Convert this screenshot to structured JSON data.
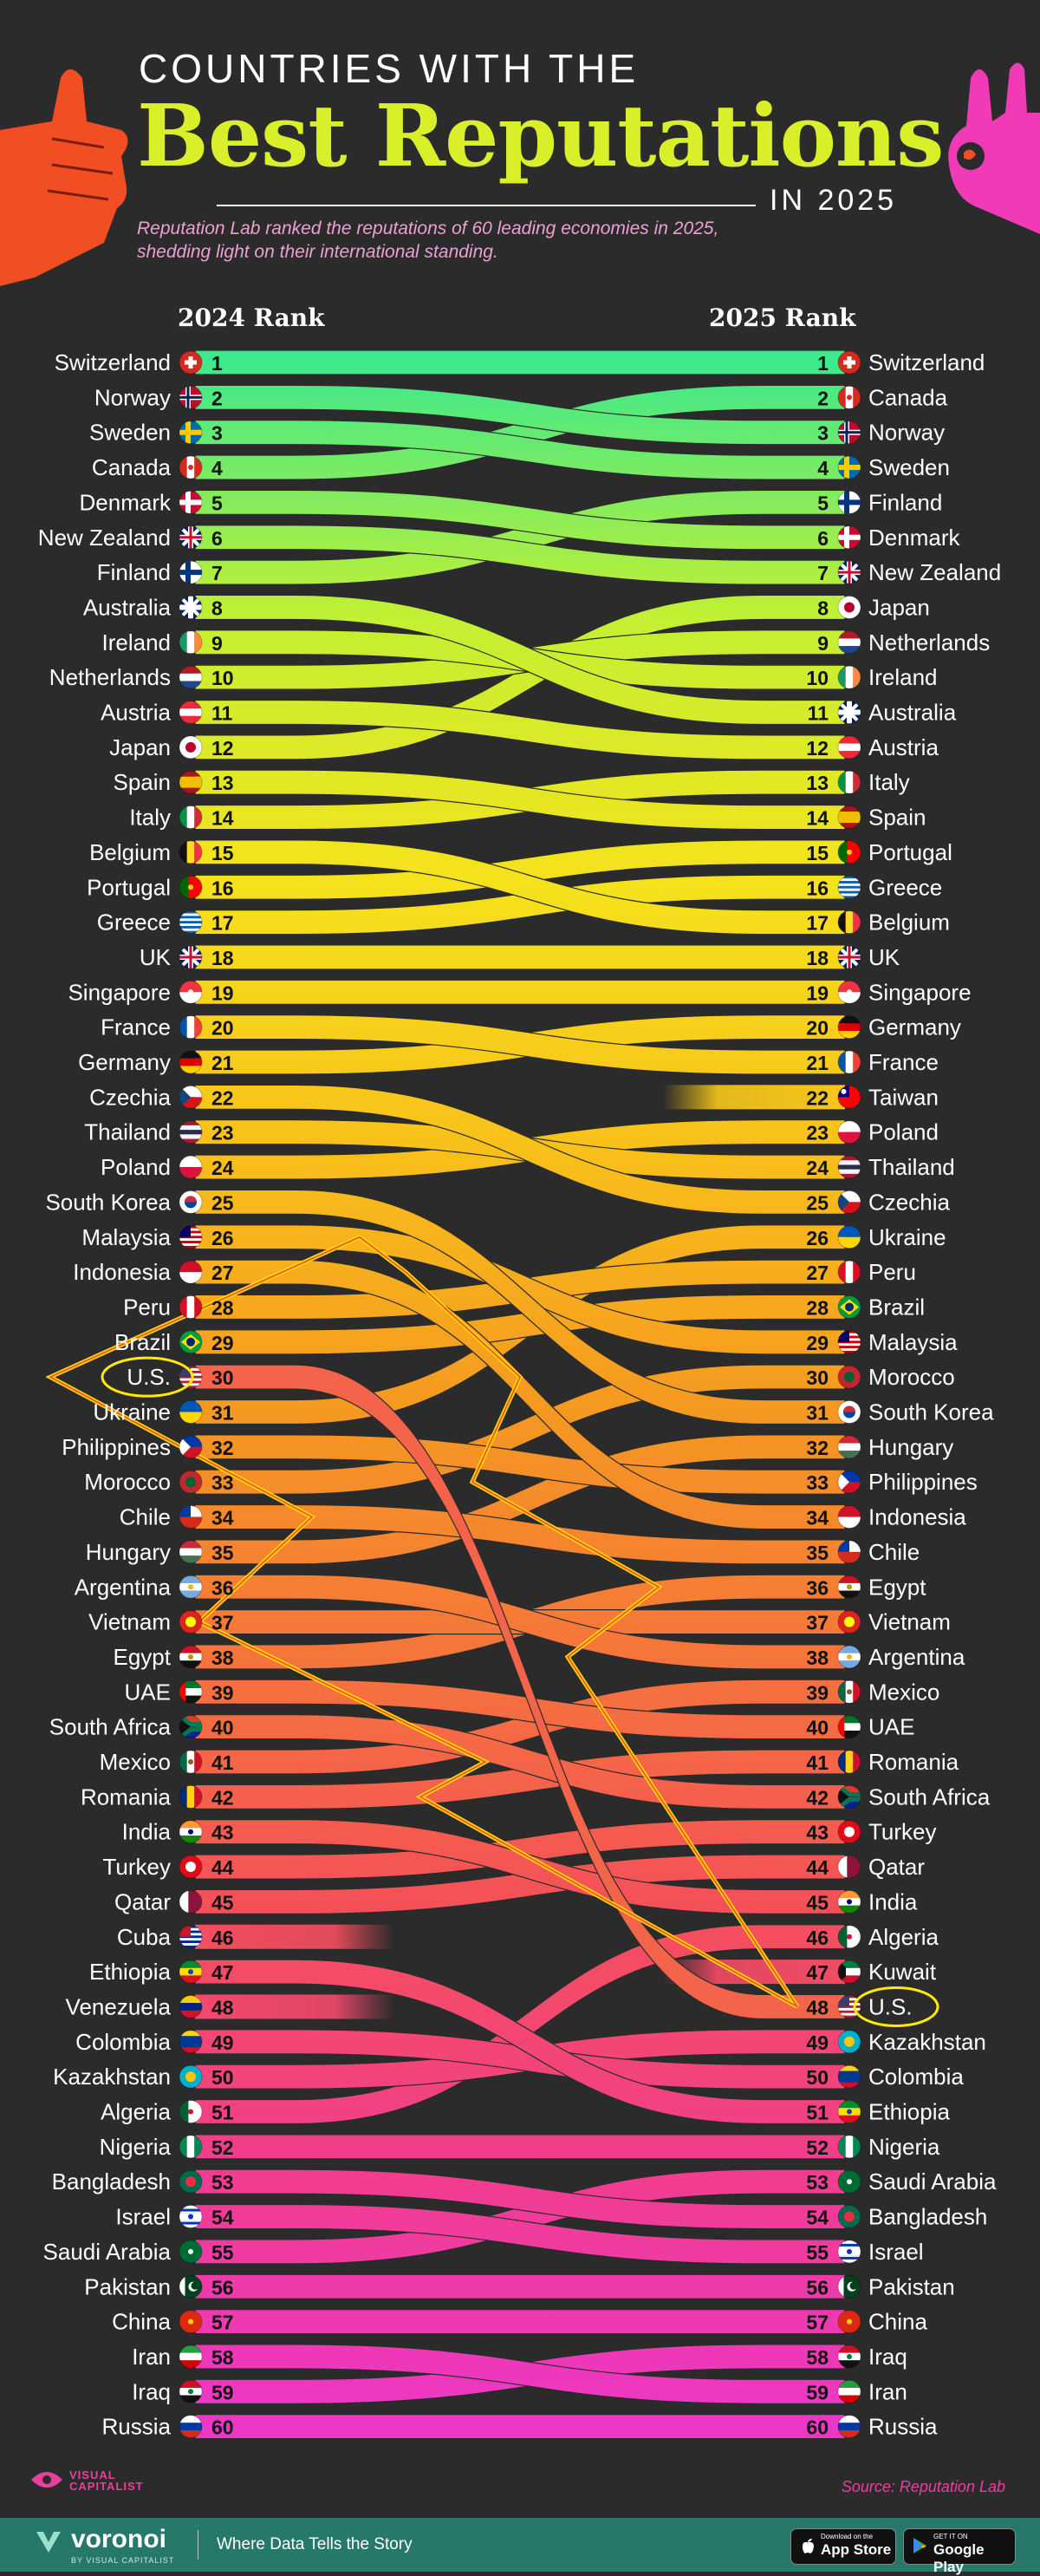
{
  "header": {
    "title_line1": "COUNTRIES WITH THE",
    "title_line2": "Best Reputations",
    "title_line3": "IN 2025",
    "subtitle": "Reputation Lab ranked the reputations of 60 leading economies in 2025, shedding light on their international standing."
  },
  "chart_data": {
    "type": "bump",
    "left_header": "2024 Rank",
    "right_header": "2025 Rank",
    "highlighted": "U.S.",
    "rows": [
      {
        "country": "Switzerland",
        "r2024": 1,
        "r2025": 1
      },
      {
        "country": "Norway",
        "r2024": 2,
        "r2025": 3
      },
      {
        "country": "Sweden",
        "r2024": 3,
        "r2025": 4
      },
      {
        "country": "Canada",
        "r2024": 4,
        "r2025": 2
      },
      {
        "country": "Denmark",
        "r2024": 5,
        "r2025": 6
      },
      {
        "country": "New Zealand",
        "r2024": 6,
        "r2025": 7
      },
      {
        "country": "Finland",
        "r2024": 7,
        "r2025": 5
      },
      {
        "country": "Australia",
        "r2024": 8,
        "r2025": 11
      },
      {
        "country": "Ireland",
        "r2024": 9,
        "r2025": 10
      },
      {
        "country": "Netherlands",
        "r2024": 10,
        "r2025": 9
      },
      {
        "country": "Austria",
        "r2024": 11,
        "r2025": 12
      },
      {
        "country": "Japan",
        "r2024": 12,
        "r2025": 8
      },
      {
        "country": "Spain",
        "r2024": 13,
        "r2025": 14
      },
      {
        "country": "Italy",
        "r2024": 14,
        "r2025": 13
      },
      {
        "country": "Belgium",
        "r2024": 15,
        "r2025": 17
      },
      {
        "country": "Portugal",
        "r2024": 16,
        "r2025": 15
      },
      {
        "country": "Greece",
        "r2024": 17,
        "r2025": 16
      },
      {
        "country": "UK",
        "r2024": 18,
        "r2025": 18
      },
      {
        "country": "Singapore",
        "r2024": 19,
        "r2025": 19
      },
      {
        "country": "France",
        "r2024": 20,
        "r2025": 21
      },
      {
        "country": "Germany",
        "r2024": 21,
        "r2025": 20
      },
      {
        "country": "Czechia",
        "r2024": 22,
        "r2025": 25
      },
      {
        "country": "Thailand",
        "r2024": 23,
        "r2025": 24
      },
      {
        "country": "Poland",
        "r2024": 24,
        "r2025": 23
      },
      {
        "country": "South Korea",
        "r2024": 25,
        "r2025": 31
      },
      {
        "country": "Malaysia",
        "r2024": 26,
        "r2025": 29
      },
      {
        "country": "Indonesia",
        "r2024": 27,
        "r2025": 34
      },
      {
        "country": "Peru",
        "r2024": 28,
        "r2025": 27
      },
      {
        "country": "Brazil",
        "r2024": 29,
        "r2025": 28
      },
      {
        "country": "U.S.",
        "r2024": 30,
        "r2025": 48
      },
      {
        "country": "Ukraine",
        "r2024": 31,
        "r2025": 26
      },
      {
        "country": "Philippines",
        "r2024": 32,
        "r2025": 33
      },
      {
        "country": "Morocco",
        "r2024": 33,
        "r2025": 30
      },
      {
        "country": "Chile",
        "r2024": 34,
        "r2025": 35
      },
      {
        "country": "Hungary",
        "r2024": 35,
        "r2025": 32
      },
      {
        "country": "Argentina",
        "r2024": 36,
        "r2025": 38
      },
      {
        "country": "Vietnam",
        "r2024": 37,
        "r2025": 37
      },
      {
        "country": "Egypt",
        "r2024": 38,
        "r2025": 36
      },
      {
        "country": "UAE",
        "r2024": 39,
        "r2025": 40
      },
      {
        "country": "South Africa",
        "r2024": 40,
        "r2025": 42
      },
      {
        "country": "Mexico",
        "r2024": 41,
        "r2025": 39
      },
      {
        "country": "Romania",
        "r2024": 42,
        "r2025": 41
      },
      {
        "country": "India",
        "r2024": 43,
        "r2025": 45
      },
      {
        "country": "Turkey",
        "r2024": 44,
        "r2025": 43
      },
      {
        "country": "Qatar",
        "r2024": 45,
        "r2025": 44
      },
      {
        "country": "Cuba",
        "r2024": 46,
        "r2025": null
      },
      {
        "country": "Ethiopia",
        "r2024": 47,
        "r2025": 51
      },
      {
        "country": "Venezuela",
        "r2024": 48,
        "r2025": null
      },
      {
        "country": "Colombia",
        "r2024": 49,
        "r2025": 50
      },
      {
        "country": "Kazakhstan",
        "r2024": 50,
        "r2025": 49
      },
      {
        "country": "Algeria",
        "r2024": 51,
        "r2025": 46
      },
      {
        "country": "Nigeria",
        "r2024": 52,
        "r2025": 52
      },
      {
        "country": "Bangladesh",
        "r2024": 53,
        "r2025": 54
      },
      {
        "country": "Israel",
        "r2024": 54,
        "r2025": 55
      },
      {
        "country": "Saudi Arabia",
        "r2024": 55,
        "r2025": 53
      },
      {
        "country": "Pakistan",
        "r2024": 56,
        "r2025": 56
      },
      {
        "country": "China",
        "r2024": 57,
        "r2025": 57
      },
      {
        "country": "Iran",
        "r2024": 58,
        "r2025": 59
      },
      {
        "country": "Iraq",
        "r2024": 59,
        "r2025": 58
      },
      {
        "country": "Russia",
        "r2024": 60,
        "r2025": 60
      },
      {
        "country": "Taiwan",
        "r2024": null,
        "r2025": 22
      },
      {
        "country": "Kuwait",
        "r2024": null,
        "r2025": 47
      }
    ]
  },
  "flags": {
    "Switzerland": {
      "type": "swiss",
      "c": [
        "#d52b1e",
        "#ffffff"
      ]
    },
    "Norway": {
      "type": "nordic",
      "c": [
        "#ba0c2f",
        "#ffffff",
        "#00205b"
      ]
    },
    "Sweden": {
      "type": "nordic",
      "c": [
        "#006aa7",
        "#fecc00"
      ]
    },
    "Canada": {
      "type": "v3",
      "c": [
        "#d52b1e",
        "#ffffff",
        "#d52b1e"
      ],
      "mark": "#d52b1e"
    },
    "Denmark": {
      "type": "nordic",
      "c": [
        "#c60c30",
        "#ffffff"
      ]
    },
    "New Zealand": {
      "type": "ensign",
      "c": [
        "#012169",
        "#c8102e"
      ]
    },
    "Finland": {
      "type": "nordic",
      "c": [
        "#ffffff",
        "#003580"
      ]
    },
    "Australia": {
      "type": "ensign",
      "c": [
        "#012169",
        "#ffffff"
      ]
    },
    "Ireland": {
      "type": "v3",
      "c": [
        "#169b62",
        "#ffffff",
        "#ff883e"
      ]
    },
    "Netherlands": {
      "type": "h3",
      "c": [
        "#ae1c28",
        "#ffffff",
        "#21468b"
      ]
    },
    "Austria": {
      "type": "h3",
      "c": [
        "#ed2939",
        "#ffffff",
        "#ed2939"
      ]
    },
    "Japan": {
      "type": "disc",
      "c": [
        "#ffffff",
        "#bc002d"
      ]
    },
    "Spain": {
      "type": "h3w",
      "c": [
        "#aa151b",
        "#f1bf00",
        "#aa151b"
      ]
    },
    "Italy": {
      "type": "v3",
      "c": [
        "#009246",
        "#ffffff",
        "#ce2b37"
      ]
    },
    "Belgium": {
      "type": "v3",
      "c": [
        "#111111",
        "#fdda24",
        "#ef3340"
      ]
    },
    "Portugal": {
      "type": "v2",
      "c": [
        "#006600",
        "#ff0000"
      ],
      "mark": "#ffcc00"
    },
    "Greece": {
      "type": "stripes",
      "c": [
        "#0d5eaf",
        "#ffffff"
      ]
    },
    "UK": {
      "type": "union",
      "c": [
        "#012169",
        "#ffffff",
        "#c8102e"
      ]
    },
    "Singapore": {
      "type": "h2",
      "c": [
        "#ef3340",
        "#ffffff"
      ],
      "mark": "#ffffff"
    },
    "France": {
      "type": "v3",
      "c": [
        "#0055a4",
        "#ffffff",
        "#ef4135"
      ]
    },
    "Germany": {
      "type": "h3",
      "c": [
        "#111111",
        "#dd0000",
        "#ffce00"
      ]
    },
    "Czechia": {
      "type": "tri",
      "c": [
        "#ffffff",
        "#d7141a",
        "#11457e"
      ]
    },
    "Thailand": {
      "type": "h5",
      "c": [
        "#a51931",
        "#f4f5f8",
        "#2d2a4a",
        "#f4f5f8",
        "#a51931"
      ]
    },
    "Poland": {
      "type": "h2",
      "c": [
        "#ffffff",
        "#dc143c"
      ]
    },
    "South Korea": {
      "type": "disc2",
      "c": [
        "#ffffff",
        "#cd2e3a",
        "#0047a0"
      ]
    },
    "Malaysia": {
      "type": "stripes",
      "c": [
        "#cc0001",
        "#ffffff"
      ],
      "canton": "#010066"
    },
    "Indonesia": {
      "type": "h2",
      "c": [
        "#ce1126",
        "#ffffff"
      ]
    },
    "Peru": {
      "type": "v3",
      "c": [
        "#d91023",
        "#ffffff",
        "#d91023"
      ]
    },
    "Brazil": {
      "type": "diamond",
      "c": [
        "#009c3b",
        "#ffdf00",
        "#002776"
      ]
    },
    "U.S.": {
      "type": "stripes",
      "c": [
        "#b22234",
        "#ffffff"
      ],
      "canton": "#3c3b6e"
    },
    "Ukraine": {
      "type": "h2",
      "c": [
        "#0057b7",
        "#ffd700"
      ]
    },
    "Philippines": {
      "type": "tri",
      "c": [
        "#0038a8",
        "#ce1126",
        "#ffffff"
      ]
    },
    "Morocco": {
      "type": "disc",
      "c": [
        "#c1272d",
        "#006233"
      ]
    },
    "Chile": {
      "type": "chile",
      "c": [
        "#ffffff",
        "#d52b1e",
        "#0039a6"
      ]
    },
    "Hungary": {
      "type": "h3",
      "c": [
        "#ce2939",
        "#ffffff",
        "#477050"
      ]
    },
    "Argentina": {
      "type": "h3",
      "c": [
        "#74acdf",
        "#ffffff",
        "#74acdf"
      ],
      "mark": "#f6b40e"
    },
    "Vietnam": {
      "type": "disc",
      "c": [
        "#da251d",
        "#ffff00"
      ]
    },
    "Egypt": {
      "type": "h3",
      "c": [
        "#ce1126",
        "#ffffff",
        "#111111"
      ],
      "mark": "#c09300"
    },
    "UAE": {
      "type": "uae",
      "c": [
        "#00732f",
        "#ffffff",
        "#111111",
        "#ff0000"
      ]
    },
    "South Africa": {
      "type": "za",
      "c": [
        "#de3831",
        "#002395",
        "#007a4d",
        "#ffb612"
      ]
    },
    "Mexico": {
      "type": "v3",
      "c": [
        "#006847",
        "#ffffff",
        "#ce1126"
      ],
      "mark": "#8b5a2b"
    },
    "Romania": {
      "type": "v3",
      "c": [
        "#002b7f",
        "#fcd116",
        "#ce1126"
      ]
    },
    "India": {
      "type": "h3",
      "c": [
        "#ff9933",
        "#ffffff",
        "#138808"
      ],
      "mark": "#000080"
    },
    "Turkey": {
      "type": "disc",
      "c": [
        "#e30a17",
        "#ffffff"
      ]
    },
    "Qatar": {
      "type": "v2",
      "c": [
        "#ffffff",
        "#8a1538"
      ]
    },
    "Cuba": {
      "type": "stripes",
      "c": [
        "#002a8f",
        "#ffffff"
      ],
      "canton": "#cf142b"
    },
    "Ethiopia": {
      "type": "h3",
      "c": [
        "#078930",
        "#fcdd09",
        "#da121a"
      ],
      "mark": "#0f47af"
    },
    "Venezuela": {
      "type": "h3",
      "c": [
        "#ffcc00",
        "#00247d",
        "#cf142b"
      ]
    },
    "Colombia": {
      "type": "h3w",
      "c": [
        "#fcd116",
        "#003893",
        "#ce1126"
      ]
    },
    "Kazakhstan": {
      "type": "disc",
      "c": [
        "#00afca",
        "#fec50c"
      ]
    },
    "Algeria": {
      "type": "v2",
      "c": [
        "#006233",
        "#ffffff"
      ],
      "mark": "#d21034"
    },
    "Nigeria": {
      "type": "v3",
      "c": [
        "#008751",
        "#ffffff",
        "#008751"
      ]
    },
    "Bangladesh": {
      "type": "disc",
      "c": [
        "#006a4e",
        "#f42a41"
      ]
    },
    "Israel": {
      "type": "h3",
      "c": [
        "#ffffff",
        "#ffffff",
        "#ffffff"
      ],
      "mark": "#0038b8",
      "lines": "#0038b8"
    },
    "Saudi Arabia": {
      "type": "solid",
      "c": [
        "#006c35"
      ],
      "mark": "#ffffff"
    },
    "Pakistan": {
      "type": "pk",
      "c": [
        "#ffffff",
        "#01411c"
      ]
    },
    "China": {
      "type": "solid",
      "c": [
        "#de2910"
      ],
      "mark": "#ffde00"
    },
    "Iran": {
      "type": "h3",
      "c": [
        "#239f40",
        "#ffffff",
        "#da0000"
      ]
    },
    "Iraq": {
      "type": "h3",
      "c": [
        "#ce1126",
        "#ffffff",
        "#111111"
      ],
      "mark": "#007a3d"
    },
    "Russia": {
      "type": "h3",
      "c": [
        "#ffffff",
        "#0039a6",
        "#d52b1e"
      ]
    },
    "Taiwan": {
      "type": "tw",
      "c": [
        "#fe0000",
        "#000095",
        "#ffffff"
      ]
    },
    "Kuwait": {
      "type": "kw",
      "c": [
        "#007a3d",
        "#ffffff",
        "#ce1126",
        "#111111"
      ]
    }
  },
  "colors": {
    "gradient_top": "#3ee88c",
    "gradient_stops": [
      "#3ee88c",
      "#c4f032",
      "#f5e21c",
      "#f8c21a",
      "#f59b20",
      "#f5753a",
      "#f5505a",
      "#f23d8e",
      "#ec37c8"
    ],
    "background": "#2b2b2b",
    "title_accent": "#d8ef2a",
    "subtitle": "#ee9fd4",
    "highlight_ring": "#ffea00",
    "highlight_flow": "#f4644a",
    "lightning_fill": "#f35a2b",
    "lightning_edge": "#ffe100"
  },
  "footer": {
    "brand_badge": "VISUAL CAPITALIST",
    "source": "Source: Reputation Lab",
    "brand": "voronoi",
    "brand_by": "BY VISUAL CAPITALIST",
    "tagline": "Where Data Tells the Story",
    "appstore_small": "Download on the",
    "appstore_big": "App Store",
    "google_small": "GET IT ON",
    "google_big": "Google Play"
  }
}
